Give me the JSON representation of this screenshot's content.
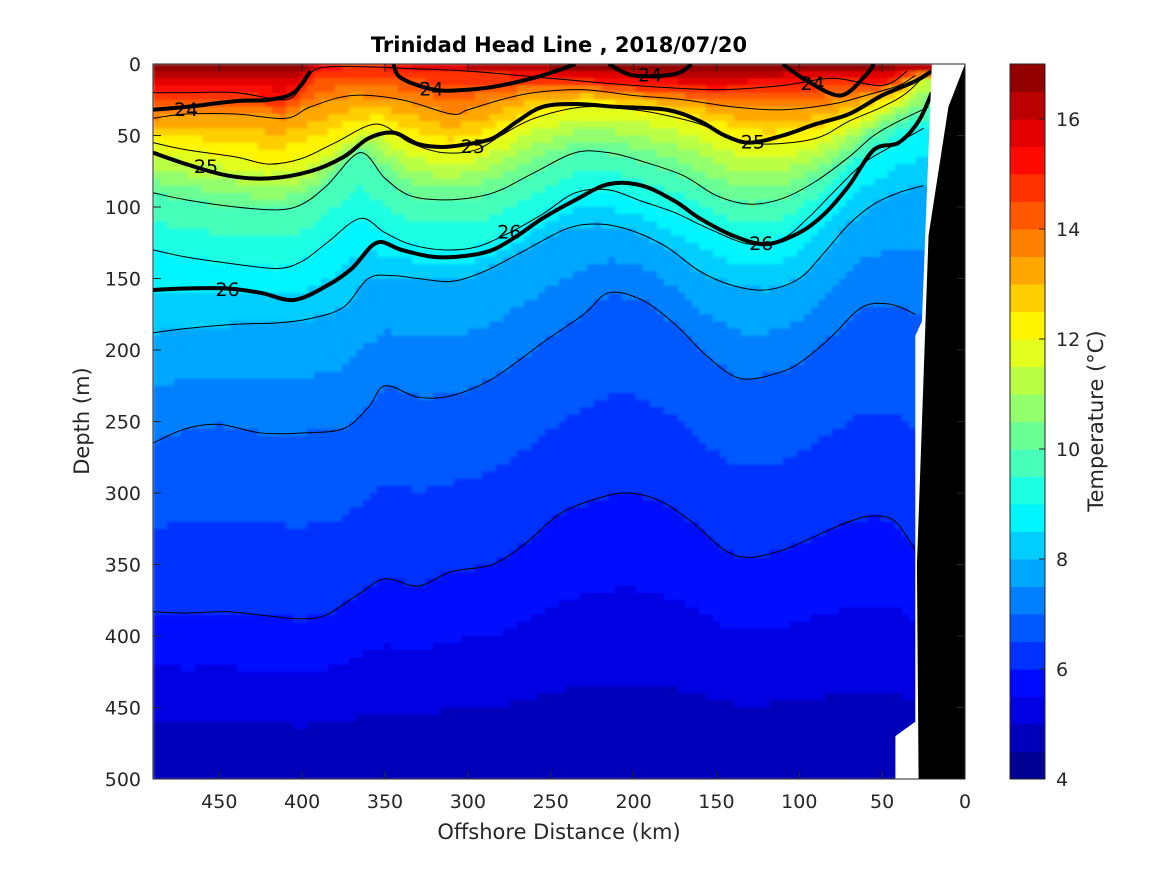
{
  "chart_data": {
    "type": "heatmap",
    "title": "Trinidad Head Line , 2018/07/20",
    "xlabel": "Offshore Distance (km)",
    "ylabel": "Depth (m)",
    "xlim": [
      490,
      0
    ],
    "ylim": [
      0,
      500
    ],
    "x_reversed": true,
    "y_reversed": true,
    "x_ticks": [
      "450",
      "400",
      "350",
      "300",
      "250",
      "200",
      "150",
      "100",
      "50",
      "0"
    ],
    "x_tick_values": [
      450,
      400,
      350,
      300,
      250,
      200,
      150,
      100,
      50,
      0
    ],
    "y_ticks": [
      "0",
      "50",
      "100",
      "150",
      "200",
      "250",
      "300",
      "350",
      "400",
      "450",
      "500"
    ],
    "y_tick_values": [
      0,
      50,
      100,
      150,
      200,
      250,
      300,
      350,
      400,
      450,
      500
    ],
    "colorbar": {
      "label": "Temperature (°C)",
      "range": [
        4,
        17
      ],
      "ticks": [
        "4",
        "6",
        "8",
        "10",
        "12",
        "14",
        "16"
      ],
      "tick_values": [
        4,
        6,
        8,
        10,
        12,
        14,
        16
      ],
      "colormap": "jet"
    },
    "temperature_isolines": [
      {
        "temperature": 15,
        "points": [
          [
            490,
            20
          ],
          [
            470,
            20
          ],
          [
            440,
            20
          ],
          [
            410,
            25
          ],
          [
            400,
            15
          ],
          [
            390,
            3
          ],
          [
            360,
            2
          ],
          [
            340,
            3
          ],
          [
            300,
            5
          ],
          [
            250,
            10
          ],
          [
            200,
            15
          ],
          [
            150,
            18
          ],
          [
            110,
            15
          ],
          [
            80,
            10
          ],
          [
            50,
            15
          ],
          [
            35,
            5
          ]
        ]
      },
      {
        "temperature": 13.5,
        "points": [
          [
            490,
            38
          ],
          [
            470,
            35
          ],
          [
            440,
            35
          ],
          [
            410,
            38
          ],
          [
            395,
            30
          ],
          [
            370,
            22
          ],
          [
            340,
            25
          ],
          [
            310,
            35
          ],
          [
            300,
            32
          ],
          [
            280,
            25
          ],
          [
            260,
            20
          ],
          [
            230,
            18
          ],
          [
            200,
            22
          ],
          [
            170,
            25
          ],
          [
            140,
            30
          ],
          [
            110,
            32
          ],
          [
            80,
            28
          ],
          [
            60,
            22
          ],
          [
            40,
            15
          ],
          [
            30,
            8
          ]
        ]
      },
      {
        "temperature": 12,
        "points": [
          [
            490,
            55
          ],
          [
            470,
            60
          ],
          [
            440,
            65
          ],
          [
            420,
            70
          ],
          [
            400,
            66
          ],
          [
            380,
            55
          ],
          [
            355,
            42
          ],
          [
            335,
            55
          ],
          [
            315,
            62
          ],
          [
            295,
            60
          ],
          [
            280,
            50
          ],
          [
            260,
            38
          ],
          [
            230,
            30
          ],
          [
            200,
            32
          ],
          [
            180,
            36
          ],
          [
            160,
            42
          ],
          [
            140,
            52
          ],
          [
            120,
            56
          ],
          [
            90,
            52
          ],
          [
            70,
            40
          ],
          [
            50,
            30
          ],
          [
            35,
            20
          ],
          [
            22,
            5
          ]
        ]
      },
      {
        "temperature": 10,
        "points": [
          [
            490,
            90
          ],
          [
            470,
            95
          ],
          [
            440,
            100
          ],
          [
            415,
            102
          ],
          [
            400,
            98
          ],
          [
            385,
            85
          ],
          [
            365,
            62
          ],
          [
            350,
            80
          ],
          [
            335,
            92
          ],
          [
            315,
            95
          ],
          [
            295,
            93
          ],
          [
            280,
            88
          ],
          [
            260,
            76
          ],
          [
            235,
            62
          ],
          [
            215,
            62
          ],
          [
            195,
            68
          ],
          [
            170,
            78
          ],
          [
            150,
            92
          ],
          [
            130,
            98
          ],
          [
            110,
            94
          ],
          [
            90,
            82
          ],
          [
            70,
            65
          ],
          [
            55,
            50
          ],
          [
            40,
            40
          ],
          [
            22,
            30
          ]
        ]
      },
      {
        "temperature": 9,
        "points": [
          [
            490,
            130
          ],
          [
            470,
            135
          ],
          [
            440,
            140
          ],
          [
            415,
            143
          ],
          [
            400,
            138
          ],
          [
            385,
            125
          ],
          [
            365,
            108
          ],
          [
            350,
            118
          ],
          [
            335,
            126
          ],
          [
            315,
            130
          ],
          [
            295,
            128
          ],
          [
            275,
            118
          ],
          [
            255,
            105
          ],
          [
            235,
            90
          ],
          [
            215,
            88
          ],
          [
            195,
            96
          ],
          [
            175,
            104
          ],
          [
            155,
            115
          ],
          [
            130,
            126
          ],
          [
            110,
            122
          ],
          [
            95,
            108
          ],
          [
            78,
            88
          ],
          [
            62,
            70
          ],
          [
            45,
            58
          ],
          [
            25,
            45
          ]
        ]
      },
      {
        "temperature": 8,
        "points": [
          [
            490,
            188
          ],
          [
            470,
            185
          ],
          [
            440,
            182
          ],
          [
            415,
            181
          ],
          [
            395,
            178
          ],
          [
            375,
            170
          ],
          [
            360,
            150
          ],
          [
            345,
            148
          ],
          [
            330,
            150
          ],
          [
            310,
            152
          ],
          [
            290,
            145
          ],
          [
            265,
            130
          ],
          [
            240,
            115
          ],
          [
            220,
            112
          ],
          [
            200,
            117
          ],
          [
            180,
            128
          ],
          [
            160,
            145
          ],
          [
            140,
            155
          ],
          [
            120,
            158
          ],
          [
            100,
            150
          ],
          [
            85,
            132
          ],
          [
            70,
            112
          ],
          [
            55,
            98
          ],
          [
            40,
            90
          ],
          [
            25,
            85
          ]
        ]
      },
      {
        "temperature": 7,
        "points": [
          [
            490,
            265
          ],
          [
            470,
            255
          ],
          [
            450,
            252
          ],
          [
            425,
            258
          ],
          [
            400,
            258
          ],
          [
            375,
            255
          ],
          [
            360,
            240
          ],
          [
            350,
            225
          ],
          [
            330,
            233
          ],
          [
            310,
            232
          ],
          [
            285,
            220
          ],
          [
            255,
            195
          ],
          [
            230,
            175
          ],
          [
            215,
            160
          ],
          [
            195,
            165
          ],
          [
            175,
            182
          ],
          [
            155,
            205
          ],
          [
            135,
            220
          ],
          [
            110,
            215
          ],
          [
            95,
            205
          ],
          [
            80,
            190
          ],
          [
            62,
            170
          ],
          [
            45,
            168
          ],
          [
            30,
            175
          ]
        ]
      },
      {
        "temperature": 6,
        "points": [
          [
            490,
            383
          ],
          [
            470,
            384
          ],
          [
            445,
            383
          ],
          [
            420,
            386
          ],
          [
            400,
            388
          ],
          [
            385,
            385
          ],
          [
            365,
            370
          ],
          [
            350,
            360
          ],
          [
            330,
            365
          ],
          [
            310,
            355
          ],
          [
            285,
            350
          ],
          [
            265,
            335
          ],
          [
            245,
            315
          ],
          [
            225,
            305
          ],
          [
            205,
            300
          ],
          [
            185,
            305
          ],
          [
            165,
            320
          ],
          [
            145,
            340
          ],
          [
            130,
            345
          ],
          [
            110,
            340
          ],
          [
            90,
            330
          ],
          [
            70,
            320
          ],
          [
            55,
            316
          ],
          [
            42,
            320
          ],
          [
            30,
            340
          ]
        ]
      }
    ],
    "density_contours": [
      {
        "level": 24,
        "points": [
          [
            490,
            32
          ],
          [
            470,
            30
          ],
          [
            440,
            26
          ],
          [
            420,
            25
          ],
          [
            405,
            20
          ],
          [
            395,
            5
          ]
        ]
      },
      {
        "level": 24,
        "points": [
          [
            345,
            0
          ],
          [
            340,
            10
          ],
          [
            320,
            18
          ],
          [
            300,
            18
          ],
          [
            280,
            15
          ],
          [
            255,
            8
          ],
          [
            235,
            0
          ]
        ]
      },
      {
        "level": 24,
        "points": [
          [
            215,
            0
          ],
          [
            200,
            8
          ],
          [
            175,
            7
          ],
          [
            165,
            0
          ]
        ]
      },
      {
        "level": 24,
        "points": [
          [
            110,
            0
          ],
          [
            95,
            12
          ],
          [
            75,
            22
          ],
          [
            60,
            8
          ],
          [
            55,
            0
          ]
        ]
      },
      {
        "level": 25,
        "points": [
          [
            490,
            62
          ],
          [
            470,
            70
          ],
          [
            445,
            78
          ],
          [
            420,
            80
          ],
          [
            395,
            75
          ],
          [
            375,
            65
          ],
          [
            360,
            52
          ],
          [
            345,
            48
          ],
          [
            330,
            56
          ],
          [
            315,
            58
          ],
          [
            300,
            56
          ],
          [
            285,
            52
          ],
          [
            270,
            40
          ],
          [
            255,
            30
          ],
          [
            235,
            28
          ],
          [
            210,
            30
          ],
          [
            180,
            32
          ],
          [
            160,
            40
          ],
          [
            145,
            50
          ],
          [
            130,
            55
          ],
          [
            110,
            50
          ],
          [
            90,
            42
          ],
          [
            70,
            35
          ],
          [
            50,
            22
          ],
          [
            30,
            12
          ],
          [
            20,
            5
          ]
        ]
      },
      {
        "level": 26,
        "points": [
          [
            490,
            158
          ],
          [
            470,
            157
          ],
          [
            445,
            157
          ],
          [
            425,
            160
          ],
          [
            405,
            165
          ],
          [
            385,
            155
          ],
          [
            370,
            143
          ],
          [
            355,
            125
          ],
          [
            340,
            130
          ],
          [
            320,
            135
          ],
          [
            300,
            134
          ],
          [
            285,
            130
          ],
          [
            270,
            120
          ],
          [
            255,
            108
          ],
          [
            235,
            95
          ],
          [
            215,
            84
          ],
          [
            195,
            85
          ],
          [
            175,
            96
          ],
          [
            160,
            108
          ],
          [
            140,
            120
          ],
          [
            120,
            126
          ],
          [
            100,
            118
          ],
          [
            85,
            105
          ],
          [
            70,
            85
          ],
          [
            55,
            60
          ],
          [
            40,
            55
          ],
          [
            28,
            40
          ],
          [
            20,
            20
          ]
        ]
      }
    ],
    "contour_labels": [
      {
        "text": "24",
        "x": 470,
        "y": 32
      },
      {
        "text": "24",
        "x": 322,
        "y": 18
      },
      {
        "text": "24",
        "x": 190,
        "y": 8
      },
      {
        "text": "24",
        "x": 92,
        "y": 14
      },
      {
        "text": "25",
        "x": 458,
        "y": 72
      },
      {
        "text": "25",
        "x": 297,
        "y": 58
      },
      {
        "text": "25",
        "x": 128,
        "y": 55
      },
      {
        "text": "26",
        "x": 445,
        "y": 158
      },
      {
        "text": "26",
        "x": 275,
        "y": 118
      },
      {
        "text": "26",
        "x": 123,
        "y": 126
      }
    ],
    "bottom_topography": {
      "color": "#000000",
      "points": [
        [
          28,
          500
        ],
        [
          29,
          350
        ],
        [
          22,
          120
        ],
        [
          10,
          30
        ],
        [
          0,
          0
        ],
        [
          0,
          500
        ]
      ]
    },
    "no_data_region": {
      "color": "#ffffff",
      "points": [
        [
          42,
          500
        ],
        [
          42,
          470
        ],
        [
          30,
          460
        ],
        [
          30,
          190
        ],
        [
          26,
          180
        ],
        [
          21,
          30
        ],
        [
          20,
          0
        ],
        [
          0,
          0
        ],
        [
          0,
          500
        ]
      ]
    }
  },
  "colors": {
    "background": "#ffffff",
    "axis": "#262626",
    "thin_contour": "#000000",
    "thick_contour": "#000000"
  }
}
